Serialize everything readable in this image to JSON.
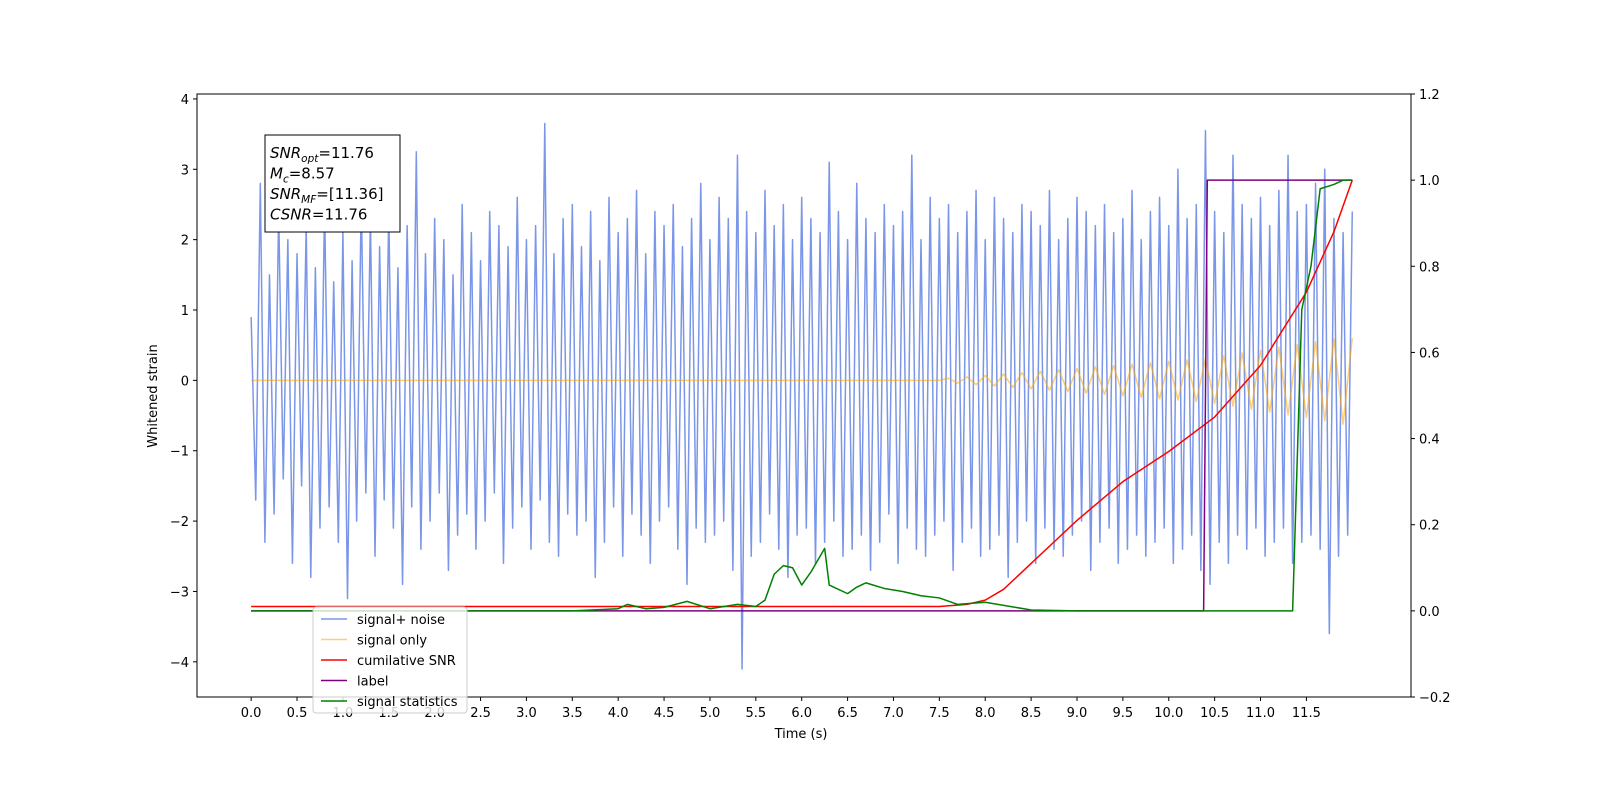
{
  "chart_data": {
    "type": "line",
    "xlabel": "Time (s)",
    "ylabel": "Whitened strain",
    "xlim": [
      -0.59,
      12.64
    ],
    "ylim": [
      -4.5,
      4.07
    ],
    "y2lim": [
      -0.2,
      1.2
    ],
    "xticks": [
      {
        "value": 0,
        "label": "0.0"
      },
      0.5,
      {
        "value": 1,
        "label": "1.0"
      },
      1.5,
      {
        "value": 2,
        "label": "2.0"
      },
      2.5,
      {
        "value": 3,
        "label": "3.0"
      },
      3.5,
      {
        "value": 4,
        "label": "4.0"
      },
      4.5,
      {
        "value": 5,
        "label": "5.0"
      },
      5.5,
      {
        "value": 6,
        "label": "6.0"
      },
      6.5,
      {
        "value": 7,
        "label": "7.0"
      },
      7.5,
      {
        "value": 8,
        "label": "8.0"
      },
      8.5,
      {
        "value": 9,
        "label": "9.0"
      },
      9.5,
      {
        "value": 10,
        "label": "10.0"
      },
      10.5,
      {
        "value": 11,
        "label": "11.0"
      },
      11.5
    ],
    "yticks": [
      {
        "value": -4,
        "label": "−4"
      },
      {
        "value": -3,
        "label": "−3"
      },
      {
        "value": -2,
        "label": "−2"
      },
      {
        "value": -1,
        "label": "−1"
      },
      0,
      1,
      2,
      3,
      4
    ],
    "y2ticks": [
      {
        "value": -0.2,
        "label": "−0.2"
      },
      {
        "value": 0,
        "label": "0.0"
      },
      0.2,
      0.4,
      0.6,
      0.8,
      {
        "value": 1,
        "label": "1.0"
      },
      1.2
    ],
    "legend": "lower left",
    "annotation": [
      {
        "name": "SNR",
        "sub": "opt",
        "value": "=11.76"
      },
      {
        "name": "M",
        "sub": "c",
        "value": "=8.57"
      },
      {
        "name": "SNR",
        "sub": "MF",
        "value": "=[11.36]"
      },
      {
        "name": "CSNR",
        "value": "=11.76"
      }
    ],
    "series": [
      {
        "name": "signal+ noise",
        "color": "#7b96e8",
        "x": [
          0,
          0.05,
          0.1,
          0.15,
          0.2,
          0.25,
          0.3,
          0.35,
          0.4,
          0.45,
          0.5,
          0.55,
          0.6,
          0.65,
          0.7,
          0.75,
          0.8,
          0.85,
          0.9,
          0.95,
          1,
          1.05,
          1.1,
          1.15,
          1.2,
          1.25,
          1.3,
          1.35,
          1.4,
          1.45,
          1.5,
          1.55,
          1.6,
          1.65,
          1.7,
          1.75,
          1.8,
          1.85,
          1.9,
          1.95,
          2,
          2.05,
          2.1,
          2.15,
          2.2,
          2.25,
          2.3,
          2.35,
          2.4,
          2.45,
          2.5,
          2.55,
          2.6,
          2.65,
          2.7,
          2.75,
          2.8,
          2.85,
          2.9,
          2.95,
          3,
          3.05,
          3.1,
          3.15,
          3.2,
          3.25,
          3.3,
          3.35,
          3.4,
          3.45,
          3.5,
          3.55,
          3.6,
          3.65,
          3.7,
          3.75,
          3.8,
          3.85,
          3.9,
          3.95,
          4,
          4.05,
          4.1,
          4.15,
          4.2,
          4.25,
          4.3,
          4.35,
          4.4,
          4.45,
          4.5,
          4.55,
          4.6,
          4.65,
          4.7,
          4.75,
          4.8,
          4.85,
          4.9,
          4.95,
          5,
          5.05,
          5.1,
          5.15,
          5.2,
          5.25,
          5.3,
          5.35,
          5.4,
          5.45,
          5.5,
          5.55,
          5.6,
          5.65,
          5.7,
          5.75,
          5.8,
          5.85,
          5.9,
          5.95,
          6,
          6.05,
          6.1,
          6.15,
          6.2,
          6.25,
          6.3,
          6.35,
          6.4,
          6.45,
          6.5,
          6.55,
          6.6,
          6.65,
          6.7,
          6.75,
          6.8,
          6.85,
          6.9,
          6.95,
          7,
          7.05,
          7.1,
          7.15,
          7.2,
          7.25,
          7.3,
          7.35,
          7.4,
          7.45,
          7.5,
          7.55,
          7.6,
          7.65,
          7.7,
          7.75,
          7.8,
          7.85,
          7.9,
          7.95,
          8,
          8.05,
          8.1,
          8.15,
          8.2,
          8.25,
          8.3,
          8.35,
          8.4,
          8.45,
          8.5,
          8.55,
          8.6,
          8.65,
          8.7,
          8.75,
          8.8,
          8.85,
          8.9,
          8.95,
          9,
          9.05,
          9.1,
          9.15,
          9.2,
          9.25,
          9.3,
          9.35,
          9.4,
          9.45,
          9.5,
          9.55,
          9.6,
          9.65,
          9.7,
          9.75,
          9.8,
          9.85,
          9.9,
          9.95,
          10,
          10.05,
          10.1,
          10.15,
          10.2,
          10.25,
          10.3,
          10.35,
          10.4,
          10.45,
          10.5,
          10.55,
          10.6,
          10.65,
          10.7,
          10.75,
          10.8,
          10.85,
          10.9,
          10.95,
          11,
          11.05,
          11.1,
          11.15,
          11.2,
          11.25,
          11.3,
          11.35,
          11.4,
          11.45,
          11.5,
          11.55,
          11.6,
          11.65,
          11.7,
          11.75,
          11.8,
          11.85,
          11.9,
          11.95,
          12
        ],
        "values": [
          0.9,
          -1.7,
          2.8,
          -2.3,
          1.5,
          -1.9,
          2.4,
          -1.4,
          2.0,
          -2.6,
          1.8,
          -1.5,
          2.2,
          -2.8,
          1.6,
          -2.1,
          2.5,
          -1.8,
          1.4,
          -2.3,
          2.1,
          -3.1,
          1.7,
          -2.0,
          2.6,
          -1.6,
          2.3,
          -2.5,
          1.9,
          -1.7,
          2.4,
          -2.1,
          1.6,
          -2.9,
          2.2,
          -1.8,
          3.25,
          -2.4,
          1.8,
          -2.0,
          2.3,
          -1.6,
          2.0,
          -2.7,
          1.5,
          -2.2,
          2.5,
          -1.9,
          2.1,
          -2.4,
          1.7,
          -2.0,
          2.4,
          -1.6,
          2.2,
          -2.6,
          1.9,
          -2.1,
          2.6,
          -1.8,
          2.0,
          -2.4,
          2.2,
          -1.7,
          3.65,
          -2.3,
          1.8,
          -2.5,
          2.3,
          -1.9,
          2.5,
          -2.2,
          1.9,
          -2.0,
          2.4,
          -2.8,
          1.7,
          -2.3,
          2.6,
          -1.8,
          2.1,
          -2.5,
          2.3,
          -1.9,
          2.7,
          -2.2,
          1.8,
          -2.6,
          2.4,
          -2.0,
          2.2,
          -1.8,
          2.5,
          -2.4,
          1.9,
          -2.9,
          2.3,
          -2.1,
          2.8,
          -2.3,
          2.0,
          -2.2,
          2.6,
          -2.0,
          2.3,
          -2.7,
          3.2,
          -4.1,
          2.4,
          -2.5,
          2.1,
          -2.3,
          2.7,
          -1.9,
          2.2,
          -2.4,
          2.5,
          -2.8,
          2.0,
          -2.2,
          2.6,
          -2.1,
          2.3,
          -2.6,
          2.1,
          -2.3,
          3.1,
          -2.0,
          2.4,
          -2.5,
          2.0,
          -2.4,
          2.8,
          -2.2,
          2.3,
          -2.7,
          2.1,
          -2.3,
          2.5,
          -1.9,
          2.2,
          -2.6,
          2.4,
          -2.1,
          3.2,
          -2.4,
          2.0,
          -2.5,
          2.6,
          -2.2,
          2.3,
          -2.0,
          2.5,
          -2.7,
          2.1,
          -2.3,
          2.4,
          -2.1,
          2.7,
          -2.5,
          2.0,
          -2.4,
          2.6,
          -2.2,
          2.3,
          -2.8,
          2.1,
          -2.3,
          2.5,
          -2.0,
          2.4,
          -2.6,
          2.2,
          -2.1,
          2.7,
          -2.4,
          2.0,
          -2.5,
          2.3,
          -2.2,
          2.6,
          -2.0,
          2.4,
          -2.7,
          2.2,
          -2.3,
          2.5,
          -2.1,
          2.1,
          -2.6,
          2.3,
          -2.4,
          2.7,
          -2.2,
          2.0,
          -2.5,
          2.4,
          -2.3,
          2.6,
          -2.1,
          2.2,
          -2.6,
          3.0,
          -2.4,
          2.3,
          -2.2,
          2.5,
          -2.7,
          3.55,
          -2.9,
          2.4,
          -2.3,
          2.1,
          -2.6,
          3.2,
          -2.2,
          2.5,
          -2.4,
          2.3,
          -2.1,
          2.6,
          -2.5,
          2.2,
          -2.3,
          2.7,
          -2.1,
          3.2,
          -2.6,
          2.4,
          -2.3,
          2.5,
          -2.2,
          2.8,
          -2.4,
          3.0,
          -3.6,
          2.3,
          -2.5,
          2.1,
          -2.2,
          2.4
        ]
      },
      {
        "name": "signal only",
        "color": "#ffa500",
        "alpha": 0.55,
        "x": [
          0,
          7.5,
          7.6,
          7.7,
          7.8,
          7.9,
          8,
          8.1,
          8.2,
          8.3,
          8.4,
          8.5,
          8.6,
          8.7,
          8.8,
          8.9,
          9,
          9.1,
          9.2,
          9.3,
          9.4,
          9.5,
          9.6,
          9.7,
          9.8,
          9.9,
          10,
          10.1,
          10.2,
          10.3,
          10.4,
          10.5,
          10.6,
          10.7,
          10.8,
          10.9,
          11,
          11.1,
          11.2,
          11.3,
          11.4,
          11.5,
          11.6,
          11.7,
          11.8,
          11.9,
          12
        ],
        "values": [
          0,
          0,
          0.03,
          -0.04,
          0.05,
          -0.06,
          0.07,
          -0.08,
          0.09,
          -0.1,
          0.11,
          -0.12,
          0.13,
          -0.14,
          0.15,
          -0.16,
          0.17,
          -0.18,
          0.19,
          -0.2,
          0.21,
          -0.22,
          0.23,
          -0.24,
          0.25,
          -0.26,
          0.27,
          -0.28,
          0.29,
          -0.3,
          0.31,
          -0.33,
          0.35,
          -0.37,
          0.39,
          -0.41,
          0.43,
          -0.45,
          0.47,
          -0.49,
          0.51,
          -0.53,
          0.55,
          -0.57,
          0.59,
          -0.62,
          0.6
        ]
      },
      {
        "name": "cumilative SNR",
        "color": "#ff0000",
        "axis": "y2",
        "x": [
          0,
          7.5,
          7.8,
          8,
          8.2,
          8.5,
          8.8,
          9,
          9.5,
          10,
          10.5,
          11,
          11.5,
          11.8,
          12
        ],
        "values": [
          0.01,
          0.01,
          0.015,
          0.025,
          0.05,
          0.11,
          0.17,
          0.21,
          0.3,
          0.37,
          0.45,
          0.57,
          0.74,
          0.88,
          1.0
        ]
      },
      {
        "name": "label",
        "color": "#800080",
        "axis": "y2",
        "x": [
          0,
          10.38,
          10.42,
          12
        ],
        "values": [
          0,
          0,
          1,
          1
        ]
      },
      {
        "name": "signal statistics",
        "color": "#008000",
        "axis": "y2",
        "x": [
          0,
          3.5,
          4,
          4.1,
          4.3,
          4.5,
          4.75,
          5,
          5.3,
          5.5,
          5.6,
          5.7,
          5.8,
          5.9,
          6,
          6.1,
          6.25,
          6.3,
          6.5,
          6.6,
          6.7,
          6.9,
          7.1,
          7.3,
          7.5,
          7.7,
          8,
          8.5,
          9,
          11.35,
          11.45,
          11.55,
          11.65,
          11.8,
          11.9,
          12
        ],
        "values": [
          0,
          0,
          0.005,
          0.015,
          0.005,
          0.008,
          0.022,
          0.005,
          0.015,
          0.01,
          0.025,
          0.085,
          0.105,
          0.1,
          0.06,
          0.09,
          0.145,
          0.06,
          0.04,
          0.055,
          0.065,
          0.052,
          0.045,
          0.035,
          0.03,
          0.015,
          0.02,
          0.002,
          0,
          0,
          0.7,
          0.8,
          0.98,
          0.99,
          1,
          1
        ]
      }
    ]
  }
}
